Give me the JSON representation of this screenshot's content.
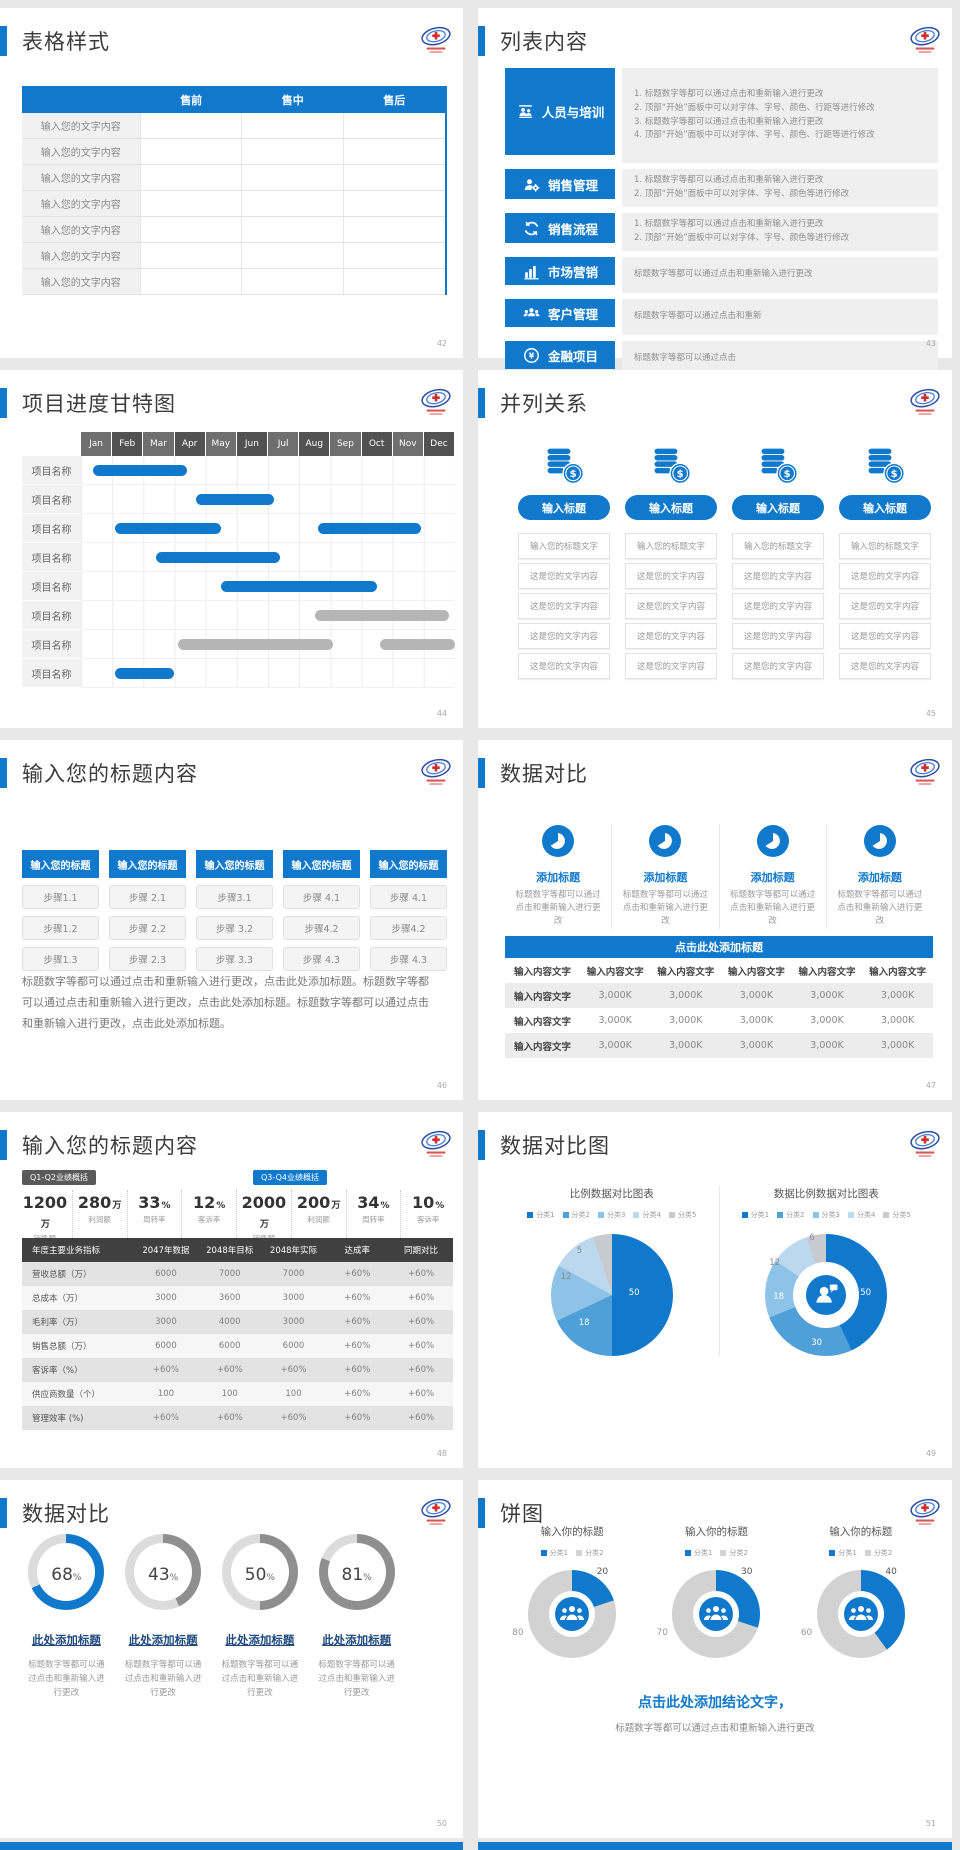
{
  "page": {
    "background": "#e8e8e8",
    "accent": "#1079cb"
  },
  "palette5": [
    "#1079cb",
    "#4f9fd8",
    "#8ec3e8",
    "#bcd8ee",
    "#c7cbd0"
  ],
  "palette2": [
    "#1079cb",
    "#d2d2d2"
  ],
  "slides": {
    "s42": {
      "page_num": "42",
      "title": "表格样式",
      "table": {
        "headers": [
          "",
          "售前",
          "售中",
          "售后"
        ],
        "rows": [
          [
            "输入您的文字内容",
            "",
            "",
            ""
          ],
          [
            "输入您的文字内容",
            "",
            "",
            ""
          ],
          [
            "输入您的文字内容",
            "",
            "",
            ""
          ],
          [
            "输入您的文字内容",
            "",
            "",
            ""
          ],
          [
            "输入您的文字内容",
            "",
            "",
            ""
          ],
          [
            "输入您的文字内容",
            "",
            "",
            ""
          ],
          [
            "输入您的文字内容",
            "",
            "",
            ""
          ]
        ]
      }
    },
    "s43": {
      "page_num": "43",
      "title": "列表内容",
      "items": [
        {
          "icon": "people-training-icon",
          "label": "人员与培训",
          "lines": [
            "1.  标题数字等都可以通过点击和重新输入进行更改",
            "2.  顶部“开始”面板中可以对字体、字号、颜色、行距等进行修改",
            "3.  标题数字等都可以通过点击和重新输入进行更改",
            "4.  顶部“开始”面板中可以对字体、字号、颜色、行距等进行修改"
          ]
        },
        {
          "icon": "sales-management-icon",
          "label": "销售管理",
          "lines": [
            "1.  标题数字等都可以通过点击和重新输入进行更改",
            "2.  顶部“开始”面板中可以对字体、字号、颜色等进行修改"
          ]
        },
        {
          "icon": "sales-process-icon",
          "label": "销售流程",
          "lines": [
            "1.  标题数字等都可以通过点击和重新输入进行更改",
            "2.  顶部“开始”面板中可以对字体、字号、颜色等进行修改"
          ]
        },
        {
          "icon": "marketing-icon",
          "label": "市场营销",
          "lines": [
            "标题数字等都可以通过点击和重新输入进行更改"
          ]
        },
        {
          "icon": "customer-management-icon",
          "label": "客户管理",
          "lines": [
            "标题数字等都可以通过点击和重新"
          ]
        },
        {
          "icon": "finance-icon",
          "label": "金融项目",
          "lines": [
            "标题数字等都可以通过点击"
          ]
        }
      ]
    },
    "s44": {
      "page_num": "44",
      "title": "项目进度甘特图",
      "chart_data": {
        "type": "gantt",
        "months": [
          "Jan",
          "Feb",
          "Mar",
          "Apr",
          "May",
          "Jun",
          "Jul",
          "Aug",
          "Sep",
          "Oct",
          "Nov",
          "Dec"
        ],
        "row_label": "项目名称",
        "rows": [
          {
            "bars": [
              {
                "start": 0.4,
                "end": 3.4,
                "color": "blue"
              }
            ]
          },
          {
            "bars": [
              {
                "start": 3.7,
                "end": 6.2,
                "color": "blue"
              }
            ]
          },
          {
            "bars": [
              {
                "start": 1.1,
                "end": 4.5,
                "color": "blue"
              },
              {
                "start": 7.6,
                "end": 10.9,
                "color": "blue"
              }
            ]
          },
          {
            "bars": [
              {
                "start": 2.4,
                "end": 6.4,
                "color": "blue"
              }
            ]
          },
          {
            "bars": [
              {
                "start": 4.5,
                "end": 9.5,
                "color": "blue"
              }
            ]
          },
          {
            "bars": [
              {
                "start": 7.5,
                "end": 11.8,
                "color": "gray"
              }
            ]
          },
          {
            "bars": [
              {
                "start": 3.1,
                "end": 8.1,
                "color": "gray"
              },
              {
                "start": 9.6,
                "end": 12,
                "color": "gray"
              }
            ]
          },
          {
            "bars": [
              {
                "start": 1.1,
                "end": 3.0,
                "color": "blue"
              }
            ]
          }
        ]
      }
    },
    "s45": {
      "page_num": "45",
      "title": "并列关系",
      "columns": [
        {
          "pill": "输入标题",
          "boxes": [
            "输入您的标题文字",
            "这是您的文字内容",
            "这是您的文字内容",
            "这是您的文字内容",
            "这是您的文字内容"
          ]
        },
        {
          "pill": "输入标题",
          "boxes": [
            "输入您的标题文字",
            "这是您的文字内容",
            "这是您的文字内容",
            "这是您的文字内容",
            "这是您的文字内容"
          ]
        },
        {
          "pill": "输入标题",
          "boxes": [
            "输入您的标题文字",
            "这是您的文字内容",
            "这是您的文字内容",
            "这是您的文字内容",
            "这是您的文字内容"
          ]
        },
        {
          "pill": "输入标题",
          "boxes": [
            "输入您的标题文字",
            "这是您的文字内容",
            "这是您的文字内容",
            "这是您的文字内容",
            "这是您的文字内容"
          ]
        }
      ]
    },
    "s46": {
      "page_num": "46",
      "title": "输入您的标题内容",
      "columns": [
        {
          "header": "输入您的标题",
          "steps": [
            "步骤1.1",
            "步骤1.2",
            "步骤1.3"
          ]
        },
        {
          "header": "输入您的标题",
          "steps": [
            "步骤 2.1",
            "步骤 2.2",
            "步骤 2.3"
          ]
        },
        {
          "header": "输入您的标题",
          "steps": [
            "步骤3.1",
            "步骤 3.2",
            "步骤 3.3"
          ]
        },
        {
          "header": "输入您的标题",
          "steps": [
            "步骤 4.1",
            "步骤4.2",
            "步骤 4.3"
          ]
        },
        {
          "header": "输入您的标题",
          "steps": [
            "步骤 4.1",
            "步骤4.2",
            "步骤 4.3"
          ]
        }
      ],
      "paragraph": "标题数字等都可以通过点击和重新输入进行更改，点击此处添加标题。标题数字等都可以通过点击和重新输入进行更改，点击此处添加标题。标题数字等都可以通过点击和重新输入进行更改，点击此处添加标题。"
    },
    "s47": {
      "page_num": "47",
      "title": "数据对比",
      "features": [
        {
          "icon": "pie-badge-icon",
          "title": "添加标题",
          "desc": "标题数字等都可以通过点击和重新输入进行更改"
        },
        {
          "icon": "pie-badge-icon",
          "title": "添加标题",
          "desc": "标题数字等都可以通过点击和重新输入进行更改"
        },
        {
          "icon": "pie-badge-icon",
          "title": "添加标题",
          "desc": "标题数字等都可以通过点击和重新输入进行更改"
        },
        {
          "icon": "pie-badge-icon",
          "title": "添加标题",
          "desc": "标题数字等都可以通过点击和重新输入进行更改"
        }
      ],
      "banner": "点击此处添加标题",
      "table": {
        "headers": [
          "输入内容文字",
          "输入内容文字",
          "输入内容文字",
          "输入内容文字",
          "输入内容文字",
          "输入内容文字"
        ],
        "rows": [
          [
            "输入内容文字",
            "3,000K",
            "3,000K",
            "3,000K",
            "3,000K",
            "3,000K"
          ],
          [
            "输入内容文字",
            "3,000K",
            "3,000K",
            "3,000K",
            "3,000K",
            "3,000K"
          ],
          [
            "输入内容文字",
            "3,000K",
            "3,000K",
            "3,000K",
            "3,000K",
            "3,000K"
          ]
        ]
      }
    },
    "s48": {
      "page_num": "48",
      "title": "输入您的标题内容",
      "tags": [
        {
          "label": "Q1-Q2业绩概括",
          "style": "dark"
        },
        {
          "label": "Q3-Q4业绩概括",
          "style": "blue"
        }
      ],
      "stats": [
        {
          "value": "1200",
          "unit": "万",
          "label": "销售额"
        },
        {
          "value": "280",
          "unit": "万",
          "label": "利润额"
        },
        {
          "value": "33",
          "unit": "%",
          "label": "周转率"
        },
        {
          "value": "12",
          "unit": "%",
          "label": "客诉率"
        },
        {
          "value": "2000",
          "unit": "万",
          "label": "销售额"
        },
        {
          "value": "200",
          "unit": "万",
          "label": "利润额"
        },
        {
          "value": "34",
          "unit": "%",
          "label": "周转率"
        },
        {
          "value": "10",
          "unit": "%",
          "label": "客诉率"
        }
      ],
      "table": {
        "headers": [
          "年度主要业务指标",
          "2047年数据",
          "2048年目标",
          "2048年实际",
          "达成率",
          "同期对比"
        ],
        "rows": [
          [
            "营收总额（万）",
            "6000",
            "7000",
            "7000",
            "+60%",
            "+60%"
          ],
          [
            "总成本（万）",
            "3000",
            "3600",
            "3000",
            "+60%",
            "+60%"
          ],
          [
            "毛利率（万）",
            "3000",
            "4000",
            "3000",
            "+60%",
            "+60%"
          ],
          [
            "销售总额（万）",
            "6000",
            "6000",
            "6000",
            "+60%",
            "+60%"
          ],
          [
            "客诉率（%）",
            "+60%",
            "+60%",
            "+60%",
            "+60%",
            "+60%"
          ],
          [
            "供应商数量（个）",
            "100",
            "100",
            "100",
            "+60%",
            "+60%"
          ],
          [
            "管理效率 (%)",
            "+60%",
            "+60%",
            "+60%",
            "+60%",
            "+60%"
          ]
        ]
      }
    },
    "s49": {
      "page_num": "49",
      "title": "数据对比图",
      "charts": [
        {
          "type": "pie",
          "title": "比例数据对比图表",
          "legend": [
            "分类1",
            "分类2",
            "分类3",
            "分类4",
            "分类5"
          ],
          "slices": [
            {
              "value": 50,
              "label": "50"
            },
            {
              "value": 18,
              "label": "18"
            },
            {
              "value": 15,
              "label": ""
            },
            {
              "value": 12,
              "label": "12"
            },
            {
              "value": 5,
              "label": "5"
            }
          ]
        },
        {
          "type": "donut",
          "title": "数据比例数据对比图表",
          "legend": [
            "分类1",
            "分类2",
            "分类3",
            "分类4",
            "分类5"
          ],
          "slices": [
            {
              "value": 50,
              "label": "50"
            },
            {
              "value": 30,
              "label": "30"
            },
            {
              "value": 18,
              "label": "18"
            },
            {
              "value": 12,
              "label": "12"
            },
            {
              "value": 6,
              "label": "6"
            }
          ],
          "center_icon": "person-chat-icon"
        }
      ]
    },
    "s50": {
      "page_num": "50",
      "title": "数据对比",
      "gauges": [
        {
          "percent": 68,
          "suffix": "%",
          "accent": true,
          "heading": "此处添加标题",
          "desc": "标题数字等都可以通过点击和重新输入进行更改"
        },
        {
          "percent": 43,
          "suffix": "%",
          "accent": false,
          "heading": "此处添加标题",
          "desc": "标题数字等都可以通过点击和重新输入进行更改"
        },
        {
          "percent": 50,
          "suffix": "%",
          "accent": false,
          "heading": "此处添加标题",
          "desc": "标题数字等都可以通过点击和重新输入进行更改"
        },
        {
          "percent": 81,
          "suffix": "%",
          "accent": false,
          "heading": "此处添加标题",
          "desc": "标题数字等都可以通过点击和重新输入进行更改"
        }
      ]
    },
    "s51": {
      "page_num": "51",
      "title": "饼图",
      "charts": [
        {
          "title": "输入你的标题",
          "legend": [
            "分类1",
            "分类2"
          ],
          "blue_value": 20,
          "gray_value": 80,
          "center_icon": "audience-icon"
        },
        {
          "title": "输入你的标题",
          "legend": [
            "分类1",
            "分类2"
          ],
          "blue_value": 30,
          "gray_value": 70,
          "center_icon": "audience-icon"
        },
        {
          "title": "输入你的标题",
          "legend": [
            "分类1",
            "分类2"
          ],
          "blue_value": 40,
          "gray_value": 60,
          "center_icon": "audience-icon"
        }
      ],
      "conclusion": "点击此处添加结论文字，",
      "conclusion_sub": "标题数字等都可以通过点击和重新输入进行更改"
    }
  }
}
